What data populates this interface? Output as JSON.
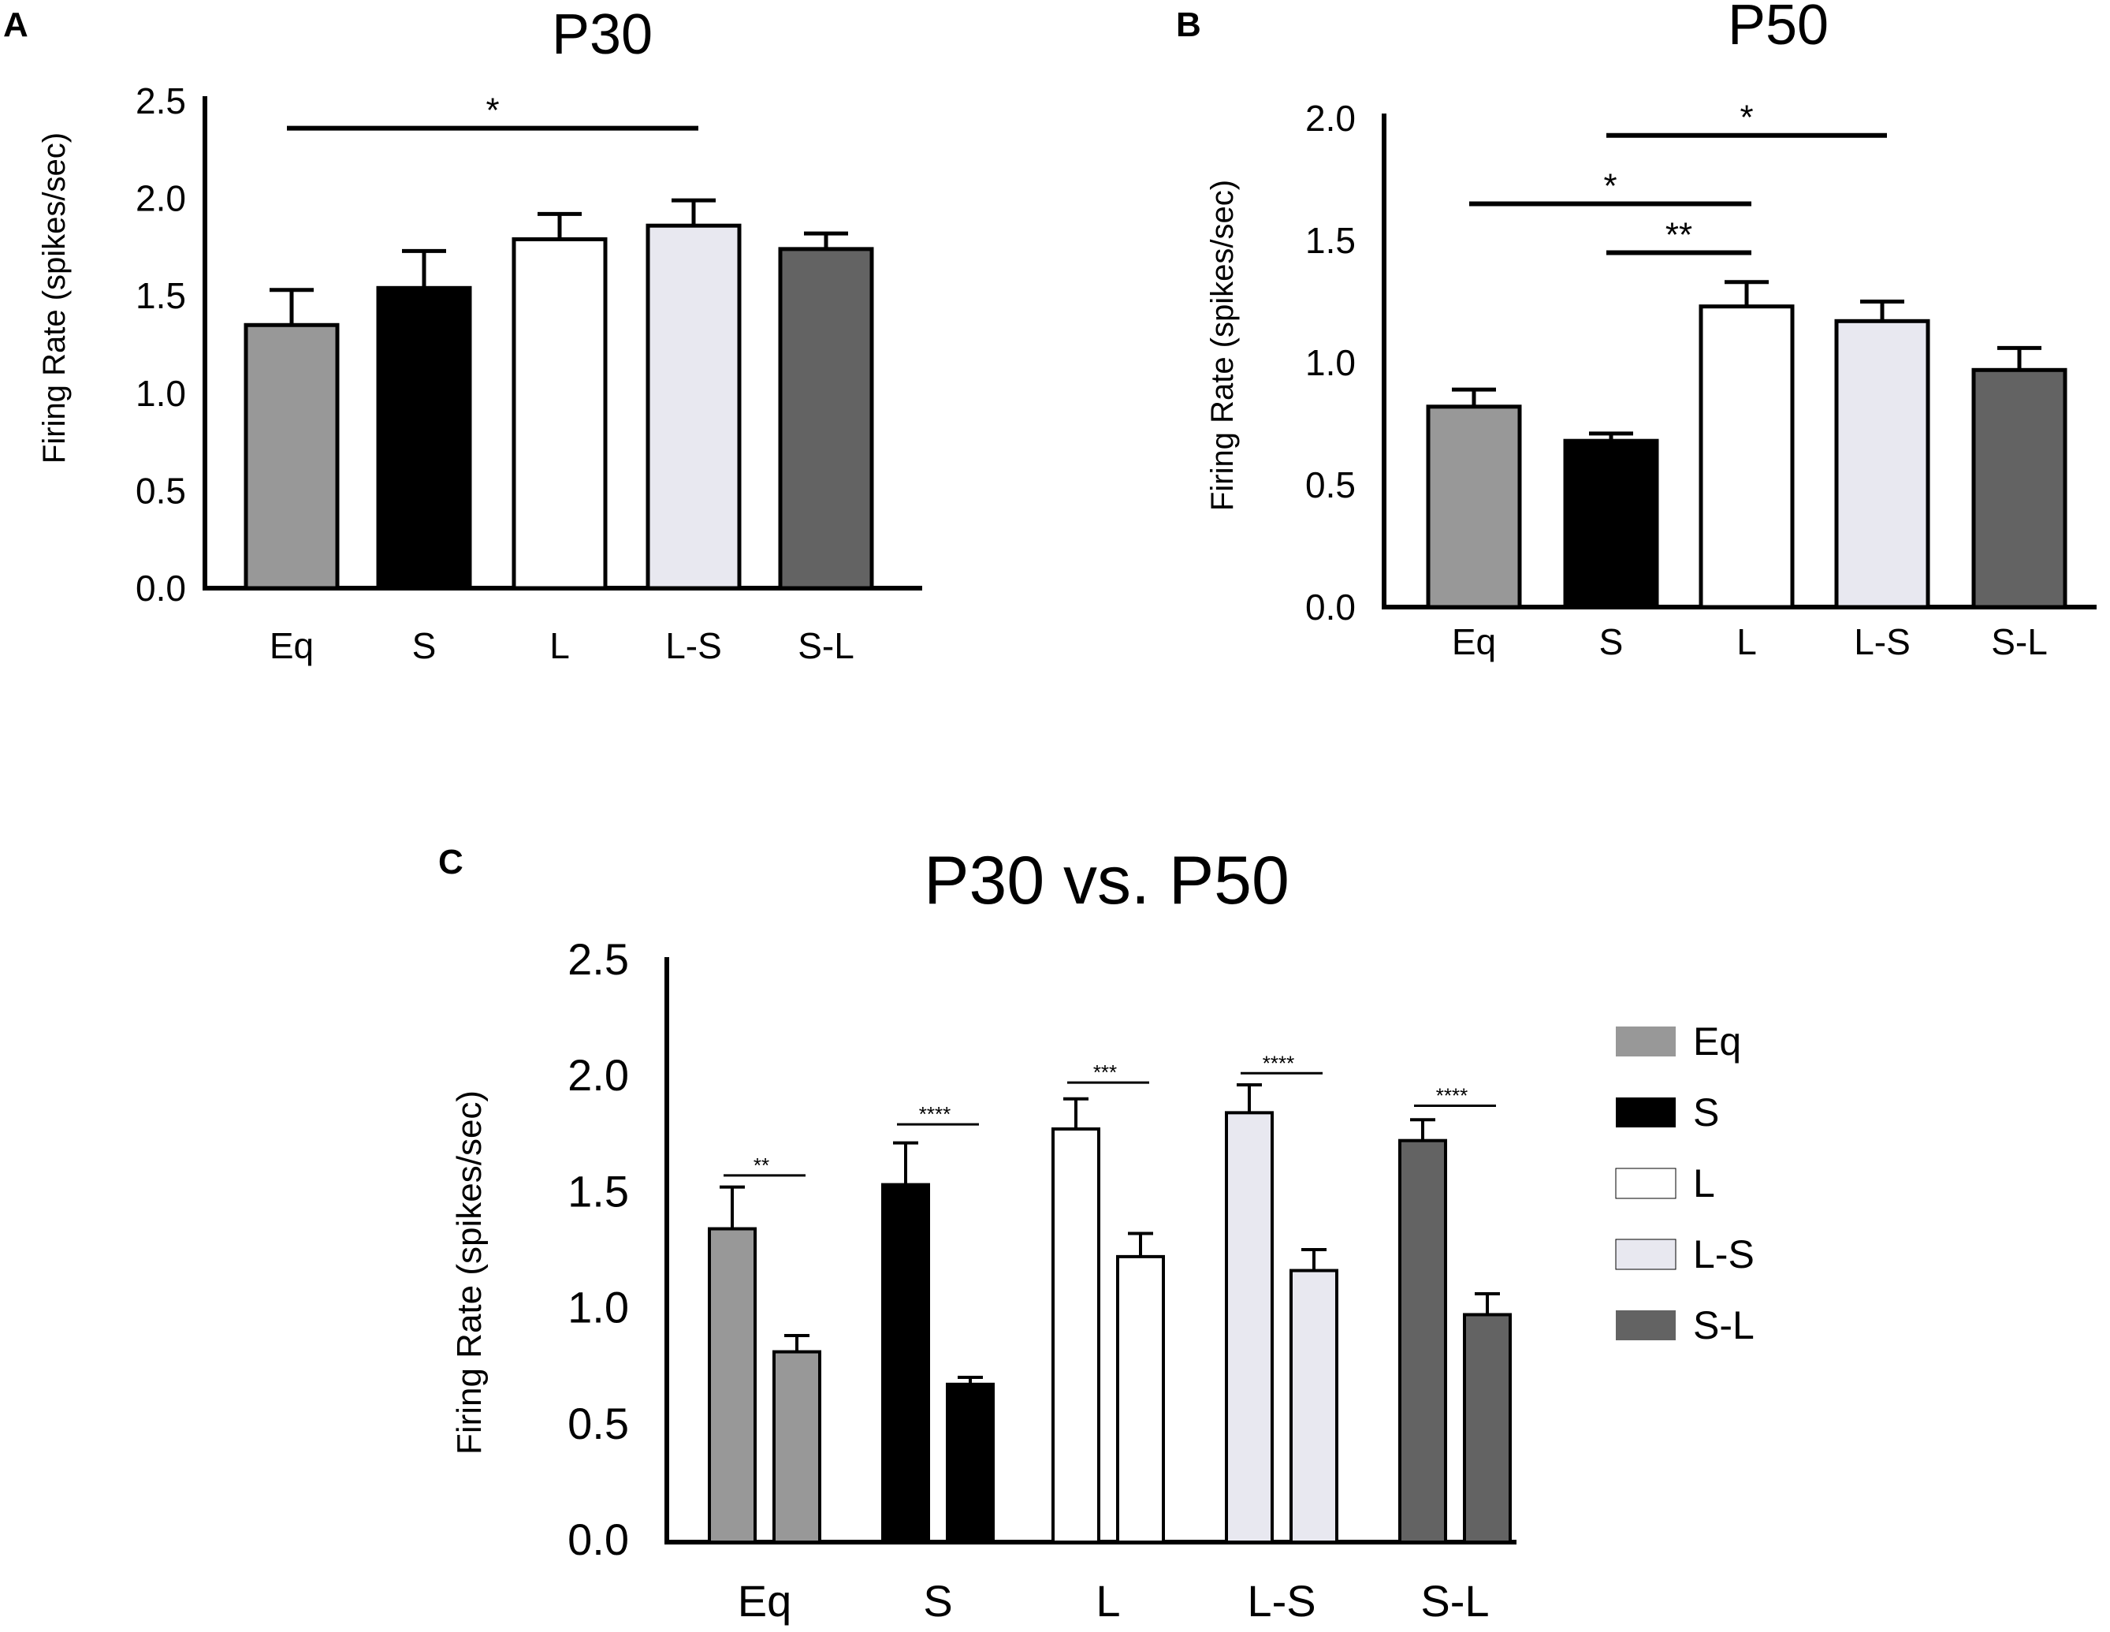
{
  "colors": {
    "Eq": "#989898",
    "S": "#000000",
    "L": "#ffffff",
    "L-S": "#e8e8f0",
    "S-L": "#636363"
  },
  "chart_data": [
    {
      "id": "A",
      "panel_label": "A",
      "type": "bar",
      "title": "P30",
      "ylabel": "Firing Rate (spikes/sec)",
      "xlabel": "",
      "ylim": [
        0,
        2.5
      ],
      "yticks": [
        "0.0",
        "0.5",
        "1.0",
        "1.5",
        "2.0",
        "2.5"
      ],
      "categories": [
        "Eq",
        "S",
        "L",
        "L-S",
        "S-L"
      ],
      "values": [
        1.35,
        1.54,
        1.79,
        1.86,
        1.74
      ],
      "errors": [
        0.18,
        0.19,
        0.13,
        0.13,
        0.08
      ],
      "significance": [
        {
          "from": 0,
          "to": 3,
          "label": "*",
          "y": 2.36
        }
      ]
    },
    {
      "id": "B",
      "panel_label": "B",
      "type": "bar",
      "title": "P50",
      "ylabel": "Firing Rate (spikes/sec)",
      "xlabel": "",
      "ylim": [
        0,
        2.0
      ],
      "yticks": [
        "0.0",
        "0.5",
        "1.0",
        "1.5",
        "2.0"
      ],
      "categories": [
        "Eq",
        "S",
        "L",
        "L-S",
        "S-L"
      ],
      "values": [
        0.82,
        0.68,
        1.23,
        1.17,
        0.97
      ],
      "errors": [
        0.07,
        0.03,
        0.1,
        0.08,
        0.09
      ],
      "significance": [
        {
          "from": 1,
          "to": 3,
          "label": "*",
          "y": 1.93
        },
        {
          "from": 0,
          "to": 2,
          "label": "*",
          "y": 1.65
        },
        {
          "from": 1,
          "to": 2,
          "label": "**",
          "y": 1.45
        }
      ]
    },
    {
      "id": "C",
      "panel_label": "C",
      "type": "bar",
      "title": "P30 vs. P50",
      "ylabel": "Firing Rate (spikes/sec)",
      "xlabel": "",
      "ylim": [
        0,
        2.5
      ],
      "yticks": [
        "0.0",
        "0.5",
        "1.0",
        "1.5",
        "2.0",
        "2.5"
      ],
      "categories": [
        "Eq",
        "S",
        "L",
        "L-S",
        "S-L"
      ],
      "series": [
        {
          "name": "P30",
          "values": [
            1.35,
            1.54,
            1.78,
            1.85,
            1.73
          ],
          "errors": [
            0.18,
            0.18,
            0.13,
            0.12,
            0.09
          ]
        },
        {
          "name": "P50",
          "values": [
            0.82,
            0.68,
            1.23,
            1.17,
            0.98
          ],
          "errors": [
            0.07,
            0.03,
            0.1,
            0.09,
            0.09
          ]
        }
      ],
      "significance": [
        {
          "category": 0,
          "label": "**",
          "y": 1.58
        },
        {
          "category": 1,
          "label": "****",
          "y": 1.8
        },
        {
          "category": 2,
          "label": "***",
          "y": 1.98
        },
        {
          "category": 3,
          "label": "****",
          "y": 2.02
        },
        {
          "category": 4,
          "label": "****",
          "y": 1.88
        }
      ],
      "legend": {
        "position": "right",
        "entries": [
          "Eq",
          "S",
          "L",
          "L-S",
          "S-L"
        ]
      }
    }
  ]
}
